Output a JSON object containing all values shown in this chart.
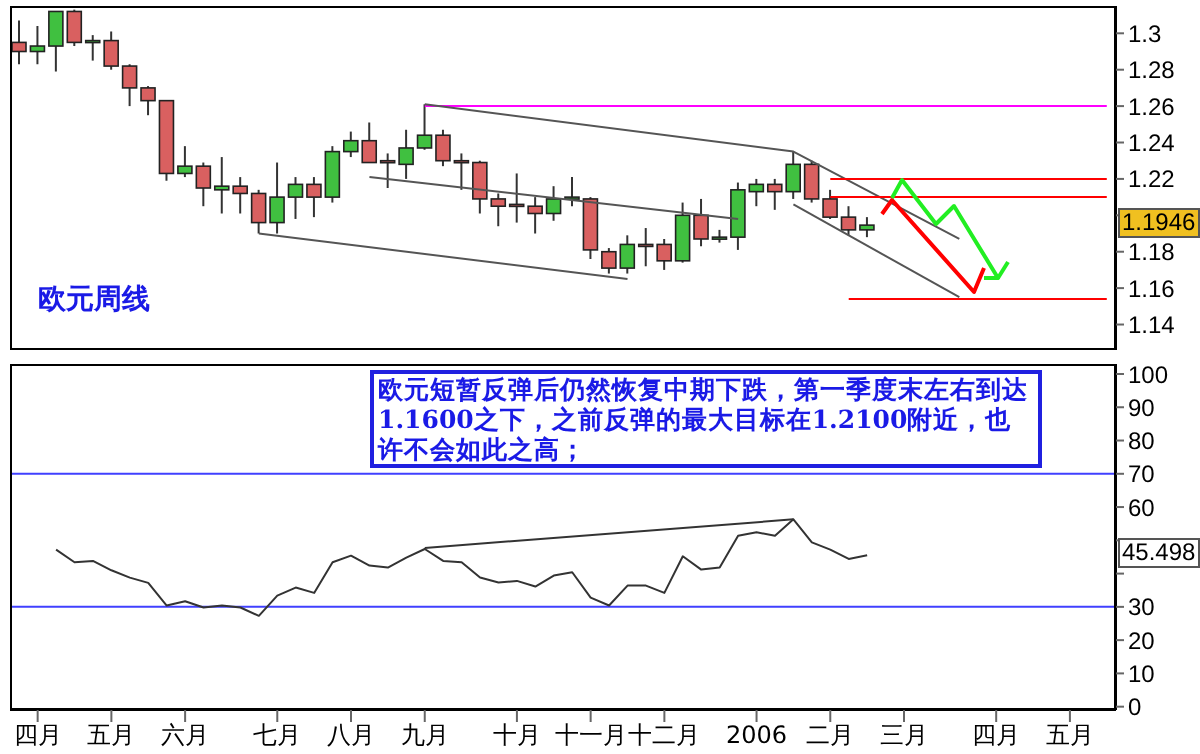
{
  "chart_data": [
    {
      "type": "candlestick",
      "annotations": [
        "欧元周线",
        "1.1946"
      ],
      "categories": [
        null,
        null,
        null,
        null,
        null,
        null,
        null,
        null,
        null,
        null,
        null,
        null,
        null,
        null,
        null,
        null,
        null,
        null,
        null,
        null,
        null,
        null,
        null,
        null,
        null,
        null,
        null,
        null,
        null,
        null,
        null,
        null,
        null,
        null,
        null,
        null,
        null,
        null,
        null,
        null,
        null,
        null,
        null,
        null,
        null,
        null,
        null,
        null,
        null,
        null,
        null,
        null,
        null,
        null,
        null,
        null,
        null,
        null,
        null,
        null
      ],
      "ohlc": [
        [
          1.295,
          1.307,
          1.283,
          1.29
        ],
        [
          1.29,
          1.304,
          1.283,
          1.293
        ],
        [
          1.293,
          1.312,
          1.279,
          1.312
        ],
        [
          1.312,
          1.313,
          1.293,
          1.295
        ],
        [
          1.295,
          1.299,
          1.285,
          1.296
        ],
        [
          1.296,
          1.301,
          1.28,
          1.282
        ],
        [
          1.282,
          1.283,
          1.26,
          1.27
        ],
        [
          1.27,
          1.271,
          1.255,
          1.263
        ],
        [
          1.263,
          1.263,
          1.219,
          1.223
        ],
        [
          1.223,
          1.238,
          1.221,
          1.227
        ],
        [
          1.227,
          1.229,
          1.205,
          1.215
        ],
        [
          1.214,
          1.232,
          1.201,
          1.216
        ],
        [
          1.216,
          1.221,
          1.201,
          1.212
        ],
        [
          1.212,
          1.214,
          1.19,
          1.196
        ],
        [
          1.196,
          1.229,
          1.19,
          1.21
        ],
        [
          1.21,
          1.221,
          1.198,
          1.217
        ],
        [
          1.217,
          1.221,
          1.199,
          1.21
        ],
        [
          1.21,
          1.238,
          1.207,
          1.235
        ],
        [
          1.235,
          1.246,
          1.232,
          1.241
        ],
        [
          1.241,
          1.251,
          1.229,
          1.229
        ],
        [
          1.23,
          1.234,
          1.215,
          1.229
        ],
        [
          1.228,
          1.247,
          1.22,
          1.237
        ],
        [
          1.237,
          1.261,
          1.236,
          1.244
        ],
        [
          1.244,
          1.247,
          1.227,
          1.23
        ],
        [
          1.23,
          1.234,
          1.214,
          1.229
        ],
        [
          1.229,
          1.23,
          1.201,
          1.209
        ],
        [
          1.209,
          1.212,
          1.194,
          1.205
        ],
        [
          1.206,
          1.223,
          1.196,
          1.205
        ],
        [
          1.205,
          1.21,
          1.19,
          1.201
        ],
        [
          1.201,
          1.216,
          1.197,
          1.209
        ],
        [
          1.209,
          1.221,
          1.205,
          1.21
        ],
        [
          1.209,
          1.21,
          1.176,
          1.181
        ],
        [
          1.18,
          1.182,
          1.168,
          1.171
        ],
        [
          1.171,
          1.189,
          1.168,
          1.184
        ],
        [
          1.184,
          1.193,
          1.172,
          1.183
        ],
        [
          1.184,
          1.187,
          1.17,
          1.175
        ],
        [
          1.175,
          1.207,
          1.174,
          1.2
        ],
        [
          1.2,
          1.209,
          1.183,
          1.187
        ],
        [
          1.187,
          1.192,
          1.185,
          1.188
        ],
        [
          1.188,
          1.218,
          1.181,
          1.214
        ],
        [
          1.213,
          1.22,
          1.205,
          1.217
        ],
        [
          1.217,
          1.22,
          1.203,
          1.213
        ],
        [
          1.213,
          1.235,
          1.209,
          1.228
        ],
        [
          1.228,
          1.23,
          1.207,
          1.209
        ],
        [
          1.209,
          1.214,
          1.198,
          1.199
        ],
        [
          1.199,
          1.205,
          1.189,
          1.192
        ],
        [
          1.192,
          1.199,
          1.188,
          1.1946
        ],
        null,
        null,
        null,
        null,
        null,
        null,
        null,
        null,
        null,
        null,
        null,
        null,
        null
      ],
      "colors": [
        "#d96060",
        "#40c040",
        "#40c040",
        "#d96060",
        "#40c040",
        "#d96060",
        "#d96060",
        "#d96060",
        "#d96060",
        "#40c040",
        "#d96060",
        "#40c040",
        "#d96060",
        "#d96060",
        "#40c040",
        "#40c040",
        "#d96060",
        "#40c040",
        "#40c040",
        "#d96060",
        "#d96060",
        "#40c040",
        "#40c040",
        "#d96060",
        "#d96060",
        "#d96060",
        "#d96060",
        "#d96060",
        "#d96060",
        "#40c040",
        "#40c040",
        "#d96060",
        "#d96060",
        "#40c040",
        "#d96060",
        "#d96060",
        "#40c040",
        "#d96060",
        "#40c040",
        "#40c040",
        "#40c040",
        "#d96060",
        "#40c040",
        "#d96060",
        "#d96060",
        "#d96060",
        "#40c040",
        null,
        null,
        null,
        null,
        null,
        null,
        null,
        null,
        null,
        null,
        null,
        null,
        null
      ],
      "series": [
        {
          "type": "line",
          "color": "#ff00ff",
          "values": [
            null,
            null,
            null,
            null,
            null,
            null,
            null,
            null,
            null,
            null,
            null,
            null,
            null,
            null,
            null,
            null,
            null,
            null,
            null,
            null,
            null,
            null,
            1.26,
            null,
            null,
            null,
            null,
            null,
            null,
            null,
            null,
            null,
            null,
            null,
            null,
            null,
            null,
            null,
            null,
            null,
            null,
            null,
            null,
            null,
            null,
            null,
            null,
            null,
            null,
            null,
            null,
            null,
            null,
            null,
            null,
            null,
            null,
            null,
            null,
            1.26
          ]
        },
        {
          "type": "line",
          "color": "#555555",
          "values": [
            null,
            null,
            null,
            null,
            null,
            null,
            null,
            null,
            null,
            null,
            null,
            null,
            null,
            null,
            null,
            null,
            null,
            null,
            null,
            null,
            null,
            null,
            1.261,
            null,
            null,
            null,
            null,
            null,
            null,
            null,
            null,
            null,
            null,
            null,
            null,
            null,
            null,
            null,
            null,
            null,
            null,
            null,
            1.235,
            null,
            null,
            null,
            null,
            null,
            null,
            null,
            null,
            1.187,
            null,
            null,
            null,
            null,
            null,
            null,
            null,
            null
          ]
        },
        {
          "type": "line",
          "color": "#555555",
          "values": [
            null,
            null,
            null,
            null,
            null,
            null,
            null,
            null,
            null,
            null,
            null,
            null,
            null,
            null,
            null,
            null,
            null,
            null,
            null,
            null,
            null,
            null,
            null,
            null,
            null,
            null,
            null,
            null,
            null,
            null,
            null,
            null,
            null,
            null,
            null,
            null,
            null,
            null,
            null,
            null,
            null,
            null,
            1.206,
            null,
            null,
            null,
            null,
            null,
            null,
            null,
            null,
            1.155,
            null,
            null,
            null,
            null,
            null,
            null,
            null,
            null
          ]
        },
        {
          "type": "line",
          "color": "#555555",
          "values": [
            null,
            null,
            null,
            null,
            null,
            null,
            null,
            null,
            null,
            null,
            null,
            null,
            null,
            null,
            null,
            null,
            null,
            null,
            null,
            1.221,
            null,
            null,
            null,
            null,
            null,
            null,
            null,
            null,
            null,
            null,
            null,
            null,
            null,
            null,
            null,
            null,
            null,
            null,
            null,
            1.198,
            null,
            null,
            null,
            null,
            null,
            null,
            null,
            null,
            null,
            null,
            null,
            null,
            null,
            null,
            null,
            null,
            null,
            null,
            null,
            null
          ]
        },
        {
          "type": "line",
          "color": "#555555",
          "values": [
            null,
            null,
            null,
            null,
            null,
            null,
            null,
            null,
            null,
            null,
            null,
            null,
            null,
            1.19,
            null,
            null,
            null,
            null,
            null,
            null,
            null,
            null,
            null,
            null,
            null,
            null,
            null,
            null,
            null,
            null,
            null,
            null,
            null,
            1.165,
            null,
            null,
            null,
            null,
            null,
            null,
            null,
            null,
            null,
            null,
            null,
            null,
            null,
            null,
            null,
            null,
            null,
            null,
            null,
            null,
            null,
            null,
            null,
            null,
            null,
            null
          ]
        },
        {
          "type": "line",
          "color": "#ff0000",
          "values": [
            null,
            null,
            null,
            null,
            null,
            null,
            null,
            null,
            null,
            null,
            null,
            null,
            null,
            null,
            null,
            null,
            null,
            null,
            null,
            null,
            null,
            null,
            null,
            null,
            null,
            null,
            null,
            null,
            null,
            null,
            null,
            null,
            null,
            null,
            null,
            null,
            null,
            null,
            null,
            null,
            null,
            null,
            null,
            null,
            1.22,
            null,
            null,
            null,
            null,
            null,
            null,
            null,
            null,
            null,
            null,
            null,
            null,
            null,
            null,
            1.22
          ]
        },
        {
          "type": "line",
          "color": "#ff0000",
          "values": [
            null,
            null,
            null,
            null,
            null,
            null,
            null,
            null,
            null,
            null,
            null,
            null,
            null,
            null,
            null,
            null,
            null,
            null,
            null,
            null,
            null,
            null,
            null,
            null,
            null,
            null,
            null,
            null,
            null,
            null,
            null,
            null,
            null,
            null,
            null,
            null,
            null,
            null,
            null,
            null,
            null,
            null,
            null,
            null,
            1.21,
            null,
            null,
            null,
            null,
            null,
            null,
            null,
            null,
            null,
            null,
            null,
            null,
            null,
            null,
            1.21
          ]
        },
        {
          "type": "line",
          "color": "#ff0000",
          "values": [
            null,
            null,
            null,
            null,
            null,
            null,
            null,
            null,
            null,
            null,
            null,
            null,
            null,
            null,
            null,
            null,
            null,
            null,
            null,
            null,
            null,
            null,
            null,
            null,
            null,
            null,
            null,
            null,
            null,
            null,
            null,
            null,
            null,
            null,
            null,
            null,
            null,
            null,
            null,
            null,
            null,
            null,
            null,
            null,
            null,
            1.154,
            null,
            null,
            null,
            null,
            null,
            null,
            null,
            null,
            null,
            null,
            null,
            null,
            null,
            1.154
          ]
        }
      ],
      "ylim": [
        1.126,
        1.315
      ],
      "yticks": [
        1.14,
        1.16,
        1.18,
        {
          "value": 1.2,
          "label": null
        },
        1.22,
        1.24,
        1.26,
        1.28,
        1.3
      ]
    },
    {
      "type": "line",
      "annotations": [
        "欧元短暂反弹后仍然恢复中期下跌，第一季度末左右到达1.1600之下，之前反弹的最大目标在1.2100附近，也许不会如此之高；",
        "45.498"
      ],
      "categories": [
        null,
        "四月",
        null,
        null,
        null,
        "五月",
        null,
        null,
        null,
        "六月",
        null,
        null,
        null,
        null,
        "七月",
        null,
        null,
        null,
        "八月",
        null,
        null,
        null,
        "九月",
        null,
        null,
        null,
        null,
        "十月",
        null,
        null,
        null,
        "十一月",
        null,
        null,
        null,
        "十二月",
        null,
        null,
        null,
        null,
        "2006",
        null,
        null,
        null,
        "二月",
        null,
        null,
        null,
        "三月",
        null,
        null,
        null,
        null,
        "四月",
        null,
        null,
        null,
        "五月",
        null,
        null
      ],
      "series": [
        {
          "color": "#333333",
          "values": [
            null,
            null,
            47.2,
            43.4,
            43.8,
            41,
            38.8,
            37.2,
            30.4,
            31.7,
            29.8,
            30.4,
            29.8,
            27.3,
            33.4,
            35.8,
            34.2,
            43.4,
            45.4,
            42.4,
            41.8,
            44.8,
            47.4,
            43.8,
            43.4,
            38.8,
            37.3,
            37.8,
            36.1,
            39.4,
            40.4,
            32.8,
            30.4,
            36.4,
            36.4,
            34.2,
            45.2,
            41.2,
            41.8,
            51.4,
            52.4,
            51.4,
            56.3,
            49.4,
            47.2,
            44.4,
            45.498,
            null,
            null,
            null,
            null,
            null,
            null,
            null,
            null,
            null,
            null,
            null,
            null,
            null
          ]
        },
        {
          "type": "line",
          "color": "#333333",
          "values": [
            null,
            null,
            null,
            null,
            null,
            null,
            null,
            null,
            null,
            null,
            null,
            null,
            null,
            null,
            null,
            null,
            null,
            null,
            null,
            null,
            null,
            null,
            47.7,
            null,
            null,
            null,
            null,
            null,
            null,
            null,
            null,
            null,
            null,
            null,
            null,
            null,
            null,
            null,
            null,
            null,
            null,
            null,
            56.3,
            null,
            null,
            null,
            null,
            null,
            null,
            null,
            null,
            null,
            null,
            null,
            null,
            null,
            null,
            null,
            null,
            null
          ]
        }
      ],
      "ref_lines": [
        {
          "axis": "y",
          "value": 70,
          "color": "#4040ff"
        },
        {
          "axis": "y",
          "value": 30,
          "color": "#4040ff"
        }
      ],
      "ylim": [
        -1,
        103
      ],
      "yticks": [
        0,
        10,
        20,
        30,
        {
          "value": 40,
          "label": null
        },
        {
          "value": 50,
          "label": null
        },
        60,
        70,
        80,
        90,
        100
      ]
    }
  ]
}
